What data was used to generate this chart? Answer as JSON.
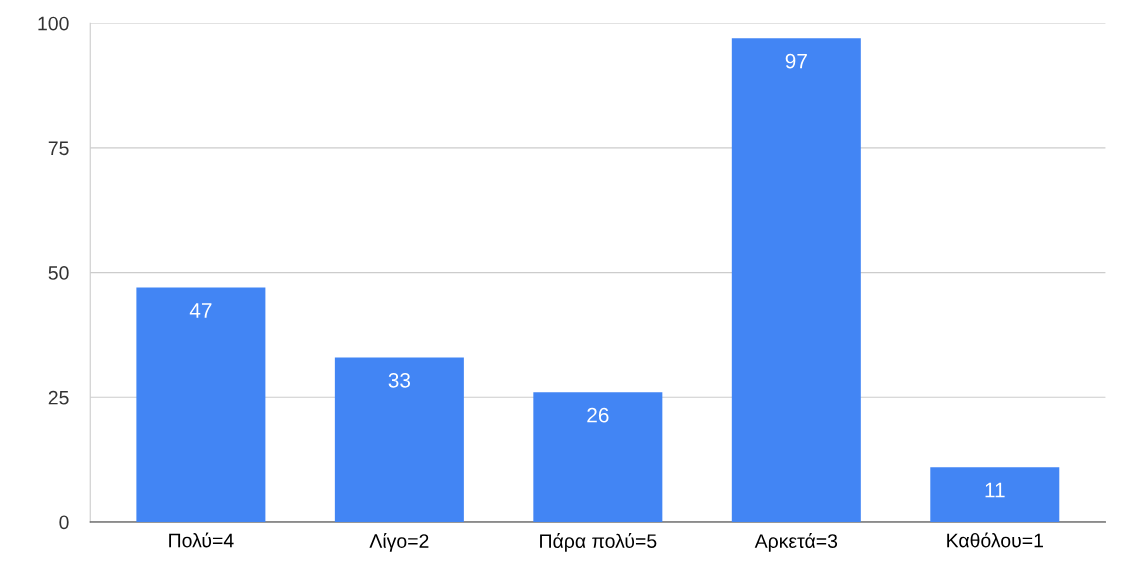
{
  "chart_data": {
    "type": "bar",
    "categories": [
      "Πολύ=4",
      "Λίγο=2",
      "Πάρα πολύ=5",
      "Αρκετά=3",
      "Καθόλου=1"
    ],
    "values": [
      47,
      33,
      26,
      97,
      11
    ],
    "color": "#4285f4",
    "ylim": [
      0,
      100
    ],
    "yticks": [
      0,
      25,
      50,
      75,
      100
    ],
    "grid": "y",
    "data_labels": true
  }
}
